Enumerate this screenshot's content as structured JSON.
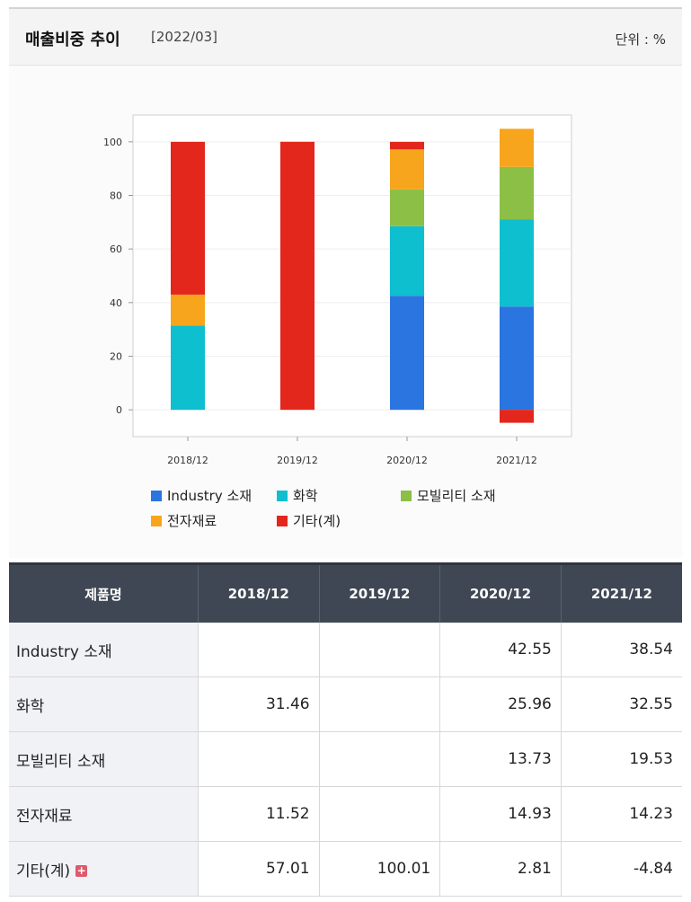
{
  "header": {
    "title": "매출비중 추이",
    "period": "[2022/03]",
    "unit": "단위 : %"
  },
  "chart_data": {
    "type": "bar",
    "stacked": true,
    "categories": [
      "2018/12",
      "2019/12",
      "2020/12",
      "2021/12"
    ],
    "ylim": [
      -10,
      110
    ],
    "yticks": [
      "100",
      "80",
      "60",
      "40",
      "20",
      "0"
    ],
    "grid": true,
    "legend_position": "bottom",
    "series": [
      {
        "name": "Industry 소재",
        "color": "#2a75e0",
        "values": [
          null,
          null,
          42.55,
          38.54
        ]
      },
      {
        "name": "화학",
        "color": "#0ebfcf",
        "values": [
          31.46,
          null,
          25.96,
          32.55
        ]
      },
      {
        "name": "모빌리티 소재",
        "color": "#8cbf45",
        "values": [
          null,
          null,
          13.73,
          19.53
        ]
      },
      {
        "name": "전자재료",
        "color": "#f7a51c",
        "values": [
          11.52,
          null,
          14.93,
          14.23
        ]
      },
      {
        "name": "기타(계)",
        "color": "#e3271c",
        "values": [
          57.01,
          100.01,
          2.81,
          -4.84
        ]
      }
    ]
  },
  "table": {
    "corner_label": "제품명",
    "columns": [
      "2018/12",
      "2019/12",
      "2020/12",
      "2021/12"
    ],
    "rows": [
      {
        "label": "Industry 소재",
        "cells": [
          "",
          "",
          "42.55",
          "38.54"
        ]
      },
      {
        "label": "화학",
        "cells": [
          "31.46",
          "",
          "25.96",
          "32.55"
        ]
      },
      {
        "label": "모빌리티 소재",
        "cells": [
          "",
          "",
          "13.73",
          "19.53"
        ]
      },
      {
        "label": "전자재료",
        "cells": [
          "11.52",
          "",
          "14.93",
          "14.23"
        ]
      },
      {
        "label": "기타(계)",
        "cells": [
          "57.01",
          "100.01",
          "2.81",
          "-4.84"
        ],
        "expand_icon": "plus-icon"
      }
    ]
  },
  "colors": {
    "negative": "#e0261d"
  }
}
